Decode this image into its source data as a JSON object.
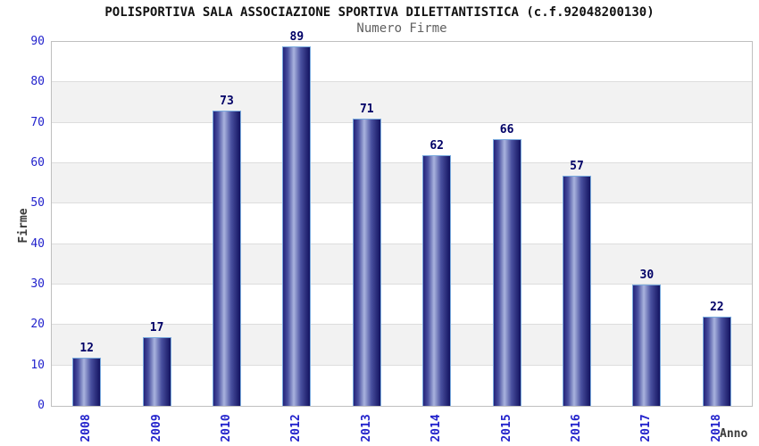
{
  "chart_data": {
    "type": "bar",
    "title": "POLISPORTIVA SALA ASSOCIAZIONE SPORTIVA DILETTANTISTICA (c.f.92048200130)",
    "subtitle": "Numero Firme",
    "xlabel": "Anno",
    "ylabel": "Firme",
    "categories": [
      "2008",
      "2009",
      "2010",
      "2012",
      "2013",
      "2014",
      "2015",
      "2016",
      "2017",
      "2018"
    ],
    "values": [
      12,
      17,
      73,
      89,
      71,
      62,
      66,
      57,
      30,
      22
    ],
    "ylim": [
      0,
      90
    ],
    "ytick_step": 10,
    "yticks": [
      0,
      10,
      20,
      30,
      40,
      50,
      60,
      70,
      80,
      90
    ],
    "legend": "none",
    "grid": "alternating horizontal bands with gridlines every 10",
    "colors": {
      "tick_label": "#2222cc",
      "category_label": "#2222cc",
      "value_label": "#000066",
      "bar_edge_dark": "#23237a",
      "bar_center_light": "#a9b3de",
      "bar_border": "#79aade",
      "band_gray": "#f2f2f2",
      "band_white": "#ffffff",
      "grid_line": "#dddddd",
      "plot_border": "#bfbfbf",
      "title_color": "#111111",
      "subtitle_color": "#606060",
      "axis_title_color": "#3a3a3a"
    }
  }
}
